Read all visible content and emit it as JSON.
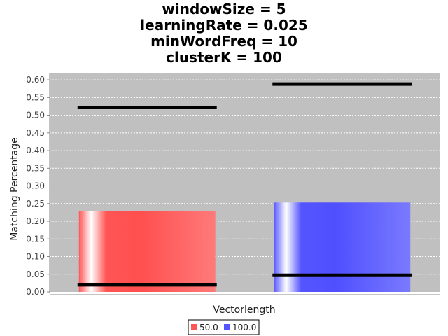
{
  "chart_data": {
    "type": "bar",
    "title_lines": [
      "windowSize = 5",
      "learningRate = 0.025",
      "minWordFreq = 10",
      "clusterK = 100"
    ],
    "xlabel": "Vectorlength",
    "ylabel": "Matching Percentage",
    "ylim": [
      0,
      0.62
    ],
    "yticks": [
      "0.00",
      "0.05",
      "0.10",
      "0.15",
      "0.20",
      "0.25",
      "0.30",
      "0.35",
      "0.40",
      "0.45",
      "0.50",
      "0.55",
      "0.60"
    ],
    "grid": true,
    "legend_position": "bottom",
    "series": [
      {
        "name": "50.0",
        "value": 0.228,
        "range_low": 0.02,
        "range_high": 0.522,
        "color": "#ff5555"
      },
      {
        "name": "100.0",
        "value": 0.253,
        "range_low": 0.047,
        "range_high": 0.588,
        "color": "#5555ff"
      }
    ],
    "plot_background": "#c0c0c0"
  }
}
